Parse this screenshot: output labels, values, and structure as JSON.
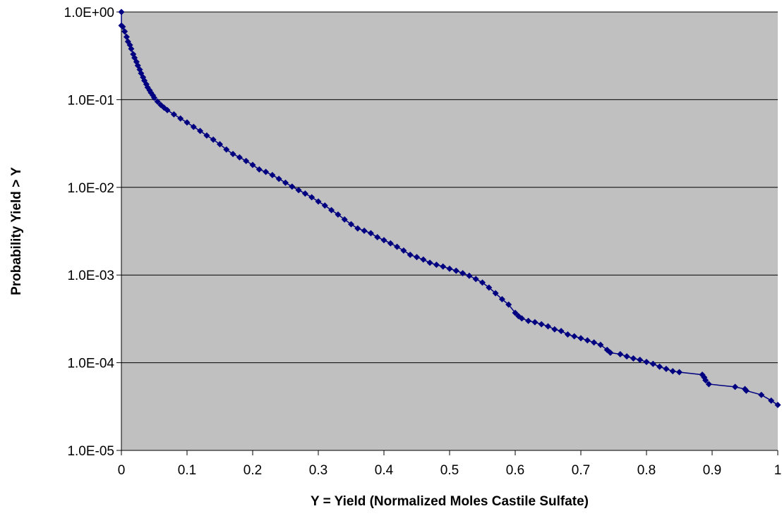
{
  "chart_data": {
    "type": "scatter",
    "title": "",
    "xlabel": "Y = Yield (Normalized Moles Castile Sulfate)",
    "ylabel": "Probability Yield > Y",
    "xlim": [
      0,
      1
    ],
    "ylim": [
      1e-05,
      1
    ],
    "yscale": "log",
    "grid": "horizontal major gridlines",
    "legend": "none",
    "x_tick_labels": [
      "0",
      "0.1",
      "0.2",
      "0.3",
      "0.4",
      "0.5",
      "0.6",
      "0.7",
      "0.8",
      "0.9",
      "1"
    ],
    "y_tick_labels": [
      "1.0E-05",
      "1.0E-04",
      "1.0E-03",
      "1.0E-02",
      "1.0E-01",
      "1.0E+00"
    ],
    "colors": {
      "series": "#000080",
      "plot_background": "#c0c0c0",
      "gridline": "#000000"
    },
    "series": [
      {
        "marker": "diamond",
        "points": [
          [
            0.0,
            1.0
          ],
          [
            0.0,
            0.7
          ],
          [
            0.002,
            0.68
          ],
          [
            0.005,
            0.6
          ],
          [
            0.008,
            0.52
          ],
          [
            0.01,
            0.46
          ],
          [
            0.013,
            0.42
          ],
          [
            0.015,
            0.38
          ],
          [
            0.018,
            0.33
          ],
          [
            0.02,
            0.3
          ],
          [
            0.023,
            0.27
          ],
          [
            0.025,
            0.245
          ],
          [
            0.028,
            0.22
          ],
          [
            0.03,
            0.2
          ],
          [
            0.033,
            0.18
          ],
          [
            0.035,
            0.165
          ],
          [
            0.038,
            0.15
          ],
          [
            0.04,
            0.138
          ],
          [
            0.043,
            0.128
          ],
          [
            0.045,
            0.12
          ],
          [
            0.048,
            0.112
          ],
          [
            0.05,
            0.105
          ],
          [
            0.055,
            0.095
          ],
          [
            0.06,
            0.087
          ],
          [
            0.065,
            0.081
          ],
          [
            0.07,
            0.076
          ],
          [
            0.08,
            0.068
          ],
          [
            0.09,
            0.061
          ],
          [
            0.1,
            0.055
          ],
          [
            0.11,
            0.049
          ],
          [
            0.12,
            0.044
          ],
          [
            0.13,
            0.039
          ],
          [
            0.14,
            0.035
          ],
          [
            0.15,
            0.031
          ],
          [
            0.16,
            0.027
          ],
          [
            0.17,
            0.024
          ],
          [
            0.18,
            0.022
          ],
          [
            0.19,
            0.02
          ],
          [
            0.2,
            0.018
          ],
          [
            0.21,
            0.016
          ],
          [
            0.22,
            0.015
          ],
          [
            0.23,
            0.0138
          ],
          [
            0.24,
            0.0125
          ],
          [
            0.25,
            0.0113
          ],
          [
            0.26,
            0.0102
          ],
          [
            0.27,
            0.0093
          ],
          [
            0.28,
            0.0085
          ],
          [
            0.29,
            0.0077
          ],
          [
            0.3,
            0.0069
          ],
          [
            0.31,
            0.0062
          ],
          [
            0.32,
            0.0055
          ],
          [
            0.33,
            0.0049
          ],
          [
            0.34,
            0.0043
          ],
          [
            0.35,
            0.0038
          ],
          [
            0.36,
            0.0034
          ],
          [
            0.37,
            0.0032
          ],
          [
            0.38,
            0.003
          ],
          [
            0.39,
            0.0027
          ],
          [
            0.4,
            0.0025
          ],
          [
            0.41,
            0.0023
          ],
          [
            0.42,
            0.0021
          ],
          [
            0.43,
            0.0019
          ],
          [
            0.44,
            0.0017
          ],
          [
            0.45,
            0.0016
          ],
          [
            0.46,
            0.0015
          ],
          [
            0.47,
            0.00138
          ],
          [
            0.48,
            0.00131
          ],
          [
            0.49,
            0.00125
          ],
          [
            0.5,
            0.00118
          ],
          [
            0.51,
            0.00112
          ],
          [
            0.52,
            0.00105
          ],
          [
            0.53,
            0.00098
          ],
          [
            0.54,
            0.0009
          ],
          [
            0.55,
            0.00082
          ],
          [
            0.56,
            0.00072
          ],
          [
            0.57,
            0.00062
          ],
          [
            0.58,
            0.00053
          ],
          [
            0.59,
            0.00046
          ],
          [
            0.6,
            0.00037
          ],
          [
            0.605,
            0.00034
          ],
          [
            0.61,
            0.00032
          ],
          [
            0.62,
            0.0003
          ],
          [
            0.63,
            0.00029
          ],
          [
            0.64,
            0.000275
          ],
          [
            0.65,
            0.00026
          ],
          [
            0.66,
            0.00024
          ],
          [
            0.67,
            0.00023
          ],
          [
            0.68,
            0.00021
          ],
          [
            0.69,
            0.0002
          ],
          [
            0.7,
            0.00019
          ],
          [
            0.71,
            0.00018
          ],
          [
            0.72,
            0.00017
          ],
          [
            0.73,
            0.00016
          ],
          [
            0.74,
            0.00014
          ],
          [
            0.745,
            0.00013
          ],
          [
            0.76,
            0.000125
          ],
          [
            0.77,
            0.000118
          ],
          [
            0.78,
            0.000112
          ],
          [
            0.79,
            0.000108
          ],
          [
            0.8,
            0.000102
          ],
          [
            0.81,
            9.7e-05
          ],
          [
            0.82,
            9e-05
          ],
          [
            0.83,
            8.5e-05
          ],
          [
            0.84,
            8e-05
          ],
          [
            0.85,
            7.8e-05
          ],
          [
            0.885,
            7.3e-05
          ],
          [
            0.888,
            6.8e-05
          ],
          [
            0.89,
            6.3e-05
          ],
          [
            0.895,
            5.7e-05
          ],
          [
            0.935,
            5.3e-05
          ],
          [
            0.95,
            5e-05
          ],
          [
            0.952,
            4.8e-05
          ],
          [
            0.975,
            4.3e-05
          ],
          [
            0.99,
            3.7e-05
          ],
          [
            1.0,
            3.3e-05
          ]
        ]
      }
    ]
  }
}
